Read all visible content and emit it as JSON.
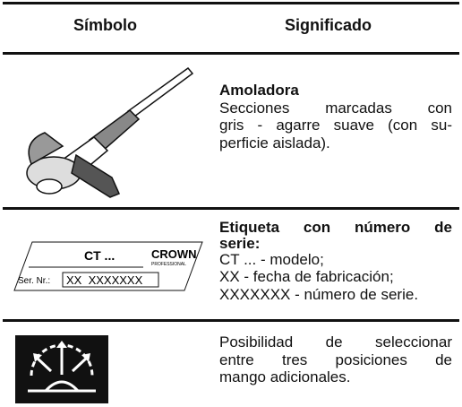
{
  "header": {
    "symbol": "Símbolo",
    "meaning": "Significado"
  },
  "rows": [
    {
      "title": "Amoladora",
      "lines": [
        "Secciones marcadas con",
        "gris - agarre suave (con su-",
        "perficie aislada)."
      ]
    },
    {
      "label": {
        "model": "CT ...",
        "brand": "CROWN",
        "brand_sub": "PROFESSIONAL",
        "serial_label": "Ser. Nr.:",
        "serial": "XX  XXXXXXX"
      },
      "title_lines": [
        "Etiqueta con número de",
        "serie:"
      ],
      "lines": [
        "CT ... - modelo;",
        "XX - fecha de fabricación;",
        "XXXXXXX - número de serie."
      ]
    },
    {
      "lines": [
        "Posibilidad de seleccionar",
        "entre tres posiciones de",
        "mango adicionales."
      ]
    }
  ]
}
